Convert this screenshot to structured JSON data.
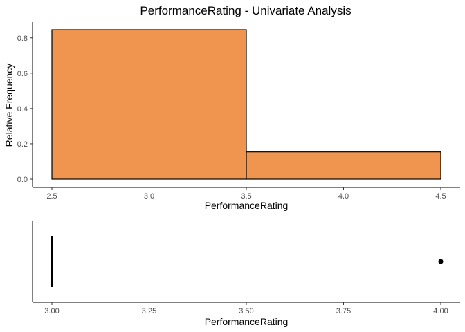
{
  "chart_data": [
    {
      "type": "bar",
      "title": "PerformanceRating - Univariate Analysis",
      "xlabel": "PerformanceRating",
      "ylabel": "Relative Frequency",
      "xlim": [
        2.5,
        4.5
      ],
      "ylim": [
        0,
        0.85
      ],
      "x_ticks": [
        "2.5",
        "3.0",
        "3.5",
        "4.0",
        "4.5"
      ],
      "y_ticks": [
        "0.0",
        "0.2",
        "0.4",
        "0.6",
        "0.8"
      ],
      "bins": [
        {
          "start": 2.5,
          "end": 3.5,
          "value": 0.846
        },
        {
          "start": 3.5,
          "end": 4.5,
          "value": 0.154
        }
      ],
      "bar_fill": "#f0954f",
      "bar_stroke": "#000000",
      "grid": false
    },
    {
      "type": "boxplot",
      "xlabel": "PerformanceRating",
      "xlim": [
        3.0,
        4.0
      ],
      "x_ticks": [
        "3.00",
        "3.25",
        "3.50",
        "3.75",
        "4.00"
      ],
      "box": {
        "min": 3,
        "q1": 3,
        "median": 3,
        "q3": 3,
        "max": 3
      },
      "outliers": [
        4
      ],
      "grid": false
    }
  ]
}
